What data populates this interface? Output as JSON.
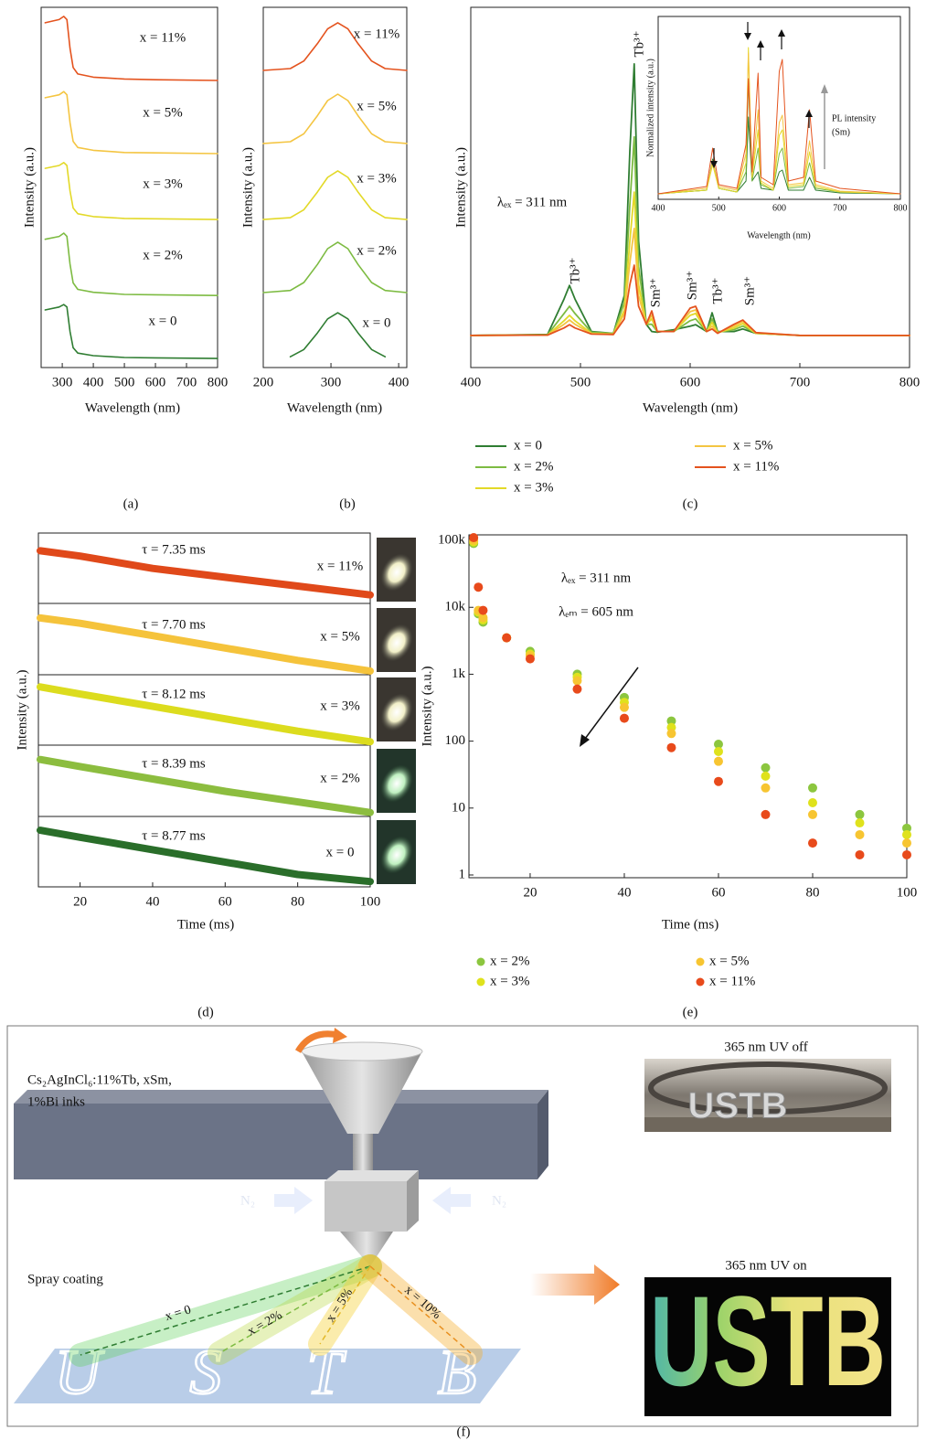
{
  "chart_data": [
    {
      "type": "line",
      "panel_label": "(a)",
      "xlabel": "Wavelength (nm)",
      "ylabel": "Intensity (a.u.)",
      "xlim": [
        232,
        800
      ],
      "xticks": [
        300,
        400,
        500,
        600,
        700,
        800
      ],
      "ylim": [
        0,
        10
      ],
      "x": [
        245,
        290,
        305,
        315,
        325,
        335,
        350,
        400,
        500,
        600,
        800
      ],
      "series": [
        {
          "name": "x = 0",
          "color": "#2f7d32",
          "values": [
            1.6,
            1.68,
            1.75,
            1.68,
            1.0,
            0.55,
            0.4,
            0.33,
            0.28,
            0.27,
            0.25
          ]
        },
        {
          "name": "x = 2%",
          "color": "#7dbb42",
          "values": [
            3.56,
            3.64,
            3.73,
            3.64,
            2.87,
            2.35,
            2.17,
            2.09,
            2.03,
            2.02,
            2.0
          ]
        },
        {
          "name": "x = 3%",
          "color": "#e3d928",
          "values": [
            5.53,
            5.61,
            5.69,
            5.61,
            4.9,
            4.43,
            4.27,
            4.19,
            4.14,
            4.13,
            4.11
          ]
        },
        {
          "name": "x = 5%",
          "color": "#f4c542",
          "values": [
            7.49,
            7.57,
            7.66,
            7.57,
            6.8,
            6.28,
            6.11,
            6.03,
            5.97,
            5.96,
            5.94
          ]
        },
        {
          "name": "x = 11%",
          "color": "#e4531e",
          "values": [
            9.57,
            9.66,
            9.75,
            9.66,
            8.86,
            8.33,
            8.15,
            8.06,
            8.01,
            7.99,
            7.97
          ]
        }
      ]
    },
    {
      "type": "line",
      "panel_label": "(b)",
      "xlabel": "Wavelength (nm)",
      "ylabel": "Intensity (a.u.)",
      "xlim": [
        200,
        412
      ],
      "xticks": [
        200,
        300,
        400
      ],
      "ylim": [
        0,
        10
      ],
      "x": [
        200,
        240,
        260,
        280,
        295,
        310,
        325,
        340,
        360,
        380,
        412
      ],
      "series": [
        {
          "name": "x = 0",
          "color": "#2f7d32",
          "values": [
            null,
            0.3,
            0.5,
            0.96,
            1.35,
            1.52,
            1.35,
            0.96,
            0.5,
            0.3,
            null
          ]
        },
        {
          "name": "x = 2%",
          "color": "#7dbb42",
          "values": [
            2.08,
            2.14,
            2.36,
            2.86,
            3.3,
            3.48,
            3.3,
            2.86,
            2.36,
            2.14,
            2.08
          ]
        },
        {
          "name": "x = 3%",
          "color": "#e3d928",
          "values": [
            4.11,
            4.16,
            4.38,
            4.87,
            5.28,
            5.46,
            5.28,
            4.87,
            4.38,
            4.16,
            4.11
          ]
        },
        {
          "name": "x = 5%",
          "color": "#f4c542",
          "values": [
            6.22,
            6.27,
            6.49,
            6.99,
            7.41,
            7.59,
            7.41,
            6.99,
            6.49,
            6.27,
            6.22
          ]
        },
        {
          "name": "x = 11%",
          "color": "#e4531e",
          "values": [
            8.25,
            8.3,
            8.51,
            8.99,
            9.4,
            9.57,
            9.4,
            8.99,
            8.51,
            8.3,
            8.25
          ]
        }
      ]
    },
    {
      "type": "line",
      "panel_label": "(c)",
      "xlabel": "Wavelength (nm)",
      "ylabel": "Intensity (a.u.)",
      "xlim": [
        400,
        800
      ],
      "xticks": [
        400,
        500,
        600,
        700,
        800
      ],
      "ylim": [
        0,
        10
      ],
      "legend": "bottom",
      "annotations": [
        "Tb³⁺",
        "Tb³⁺",
        "Sm³⁺",
        "Sm³⁺",
        "Tb³⁺",
        "Sm³⁺",
        "λₑₓ = 311 nm"
      ],
      "x": [
        400,
        470,
        485,
        490,
        495,
        510,
        530,
        540,
        545,
        549,
        553,
        560,
        565,
        570,
        585,
        600,
        605,
        615,
        620,
        625,
        640,
        648,
        660,
        700,
        800
      ],
      "series": [
        {
          "name": "x = 0",
          "color": "#2f7d32",
          "values": [
            0.89,
            0.92,
            1.9,
            2.28,
            1.9,
            1.0,
            0.95,
            2.0,
            6.0,
            8.43,
            3.5,
            1.2,
            1.0,
            0.98,
            1.05,
            1.15,
            1.19,
            1.0,
            1.52,
            1.0,
            1.0,
            1.07,
            0.95,
            0.89,
            0.89
          ]
        },
        {
          "name": "x = 2%",
          "color": "#7dbb42",
          "values": [
            0.89,
            0.91,
            1.5,
            1.7,
            1.5,
            0.98,
            0.95,
            1.8,
            4.5,
            6.4,
            2.8,
            1.2,
            1.2,
            1.0,
            1.0,
            1.3,
            1.35,
            1.0,
            1.35,
            0.98,
            1.05,
            1.15,
            0.95,
            0.89,
            0.89
          ]
        },
        {
          "name": "x = 3%",
          "color": "#e3d928",
          "values": [
            0.89,
            0.9,
            1.3,
            1.45,
            1.3,
            0.95,
            0.93,
            1.6,
            3.5,
            4.87,
            2.3,
            1.2,
            1.35,
            1.0,
            1.0,
            1.45,
            1.5,
            1.0,
            1.25,
            0.97,
            1.1,
            1.22,
            0.95,
            0.89,
            0.89
          ]
        },
        {
          "name": "x = 5%",
          "color": "#f4c542",
          "values": [
            0.89,
            0.9,
            1.2,
            1.32,
            1.2,
            0.94,
            0.92,
            1.5,
            2.9,
            3.86,
            2.0,
            1.2,
            1.45,
            1.0,
            1.0,
            1.55,
            1.6,
            1.0,
            1.15,
            0.96,
            1.15,
            1.28,
            0.96,
            0.89,
            0.89
          ]
        },
        {
          "name": "x = 11%",
          "color": "#e4531e",
          "values": [
            0.89,
            0.9,
            1.1,
            1.19,
            1.1,
            0.93,
            0.92,
            1.35,
            2.3,
            2.84,
            1.7,
            1.2,
            1.57,
            1.0,
            1.0,
            1.65,
            1.7,
            1.0,
            1.07,
            0.95,
            1.2,
            1.32,
            0.97,
            0.89,
            0.89
          ]
        }
      ]
    },
    {
      "type": "line",
      "xlabel": "Wavelength (nm)",
      "ylabel": "Normalized intensity (a.u.)",
      "xlim": [
        400,
        800
      ],
      "xticks": [
        400,
        500,
        600,
        700,
        800
      ],
      "ylim": [
        0,
        10
      ],
      "annotations": [
        "PL intensity",
        "(Sm)"
      ],
      "x": [
        400,
        480,
        490,
        500,
        530,
        545,
        549,
        555,
        565,
        570,
        590,
        600,
        605,
        615,
        640,
        650,
        660,
        700,
        800
      ],
      "series": [
        {
          "color": "#2f7d32",
          "values": [
            0.3,
            0.5,
            2.2,
            0.6,
            0.4,
            1.0,
            4.5,
            1.0,
            1.5,
            0.6,
            0.5,
            1.5,
            1.6,
            0.5,
            0.5,
            1.2,
            0.5,
            0.35,
            0.3
          ]
        },
        {
          "color": "#7dbb42",
          "values": [
            0.3,
            0.5,
            2.0,
            0.6,
            0.4,
            1.5,
            6.5,
            1.0,
            2.8,
            0.8,
            0.5,
            2.5,
            2.8,
            0.6,
            0.7,
            2.0,
            0.6,
            0.4,
            0.3
          ]
        },
        {
          "color": "#e3d928",
          "values": [
            0.3,
            0.5,
            1.9,
            0.6,
            0.4,
            2.0,
            8.3,
            1.2,
            3.8,
            0.9,
            0.5,
            3.5,
            3.8,
            0.7,
            0.8,
            2.6,
            0.7,
            0.4,
            0.3
          ]
        },
        {
          "color": "#f4c542",
          "values": [
            0.3,
            0.6,
            2.1,
            0.7,
            0.5,
            2.5,
            8.0,
            1.3,
            4.9,
            1.0,
            0.6,
            4.2,
            4.6,
            0.8,
            0.9,
            3.2,
            0.8,
            0.45,
            0.3
          ]
        },
        {
          "color": "#e4531e",
          "values": [
            0.3,
            0.7,
            2.8,
            0.8,
            0.6,
            3.0,
            6.6,
            1.5,
            6.9,
            1.2,
            0.8,
            7.0,
            7.65,
            1.0,
            1.2,
            4.9,
            1.0,
            0.6,
            0.3
          ]
        }
      ]
    },
    {
      "type": "line",
      "panel_label": "(d)",
      "xlabel": "Time (ms)",
      "ylabel": "Intensity (a.u.)",
      "xlim": [
        8.5,
        100
      ],
      "xticks": [
        20,
        40,
        60,
        80,
        100
      ],
      "ylim": [
        0,
        10
      ],
      "annotations": [
        "τ = 7.35 ms",
        "τ = 7.70 ms",
        "τ = 8.12 ms",
        "τ = 8.39 ms",
        "τ = 8.77 ms"
      ],
      "x": [
        9,
        20,
        40,
        60,
        80,
        100
      ],
      "series": [
        {
          "name": "x = 11%",
          "color": "#e0491a",
          "values": [
            9.5,
            9.35,
            9.0,
            8.75,
            8.5,
            8.25
          ]
        },
        {
          "name": "x = 5%",
          "color": "#f5c33b",
          "values": [
            7.6,
            7.45,
            7.1,
            6.75,
            6.4,
            6.1
          ]
        },
        {
          "name": "x = 3%",
          "color": "#dcdc1e",
          "values": [
            5.65,
            5.45,
            5.1,
            4.75,
            4.4,
            4.1
          ]
        },
        {
          "name": "x = 2%",
          "color": "#8cbd3f",
          "values": [
            3.6,
            3.4,
            3.05,
            2.7,
            2.4,
            2.1
          ]
        },
        {
          "name": "x = 0",
          "color": "#2a6e2a",
          "values": [
            1.6,
            1.4,
            1.05,
            0.7,
            0.35,
            0.15
          ]
        }
      ]
    },
    {
      "type": "scatter",
      "panel_label": "(e)",
      "xlabel": "Time (ms)",
      "ylabel": "Intensity (a.u.)",
      "log_y": true,
      "legend": "bottom",
      "xlim": [
        7,
        100
      ],
      "xticks": [
        20,
        40,
        60,
        80,
        100
      ],
      "ylim": [
        0.91,
        121000
      ],
      "yticks": [
        1,
        10,
        100,
        {
          "value": 1000,
          "label": "1k"
        },
        {
          "value": 10000,
          "label": "10k"
        },
        {
          "value": 100000,
          "label": "100k"
        }
      ],
      "annotations": [
        "λₑₓ = 311 nm",
        "λₑₘ = 605 nm"
      ],
      "x": [
        8,
        9,
        10,
        15,
        20,
        30,
        40,
        50,
        60,
        70,
        80,
        90,
        100
      ],
      "series": [
        {
          "name": "x = 2%",
          "color": "#8cc63f",
          "values": [
            90000,
            8000,
            6000,
            3500,
            2200,
            1000,
            450,
            200,
            90,
            40,
            20,
            8,
            5
          ]
        },
        {
          "name": "x = 3%",
          "color": "#dfe21c",
          "values": [
            95000,
            8500,
            6500,
            3500,
            2000,
            900,
            380,
            160,
            70,
            30,
            12,
            6,
            4
          ]
        },
        {
          "name": "x = 5%",
          "color": "#f7c531",
          "values": [
            100000,
            9000,
            7000,
            3500,
            1900,
            800,
            320,
            130,
            50,
            20,
            8,
            4,
            3
          ]
        },
        {
          "name": "x = 11%",
          "color": "#e84a1b",
          "values": [
            110000,
            20000,
            9000,
            3500,
            1700,
            600,
            220,
            80,
            25,
            8,
            3,
            2,
            2
          ]
        }
      ]
    }
  ],
  "diagram": {
    "panel_label": "(f)",
    "ink_label": [
      "Cs₂AgInCl₆:11%Tb, xSm,",
      "1%Bi inks"
    ],
    "gas_labels": [
      "N₂",
      "N₂"
    ],
    "process_label": "Spray coating",
    "spray_labels": [
      "x = 0",
      "x = 2%",
      "x = 5%",
      "x = 10%"
    ],
    "substrate_letters": [
      "U",
      "S",
      "T",
      "B"
    ],
    "photos": [
      {
        "caption": "365 nm UV off",
        "text": "USTB"
      },
      {
        "caption": "365 nm UV on",
        "text": "USTB"
      }
    ]
  }
}
